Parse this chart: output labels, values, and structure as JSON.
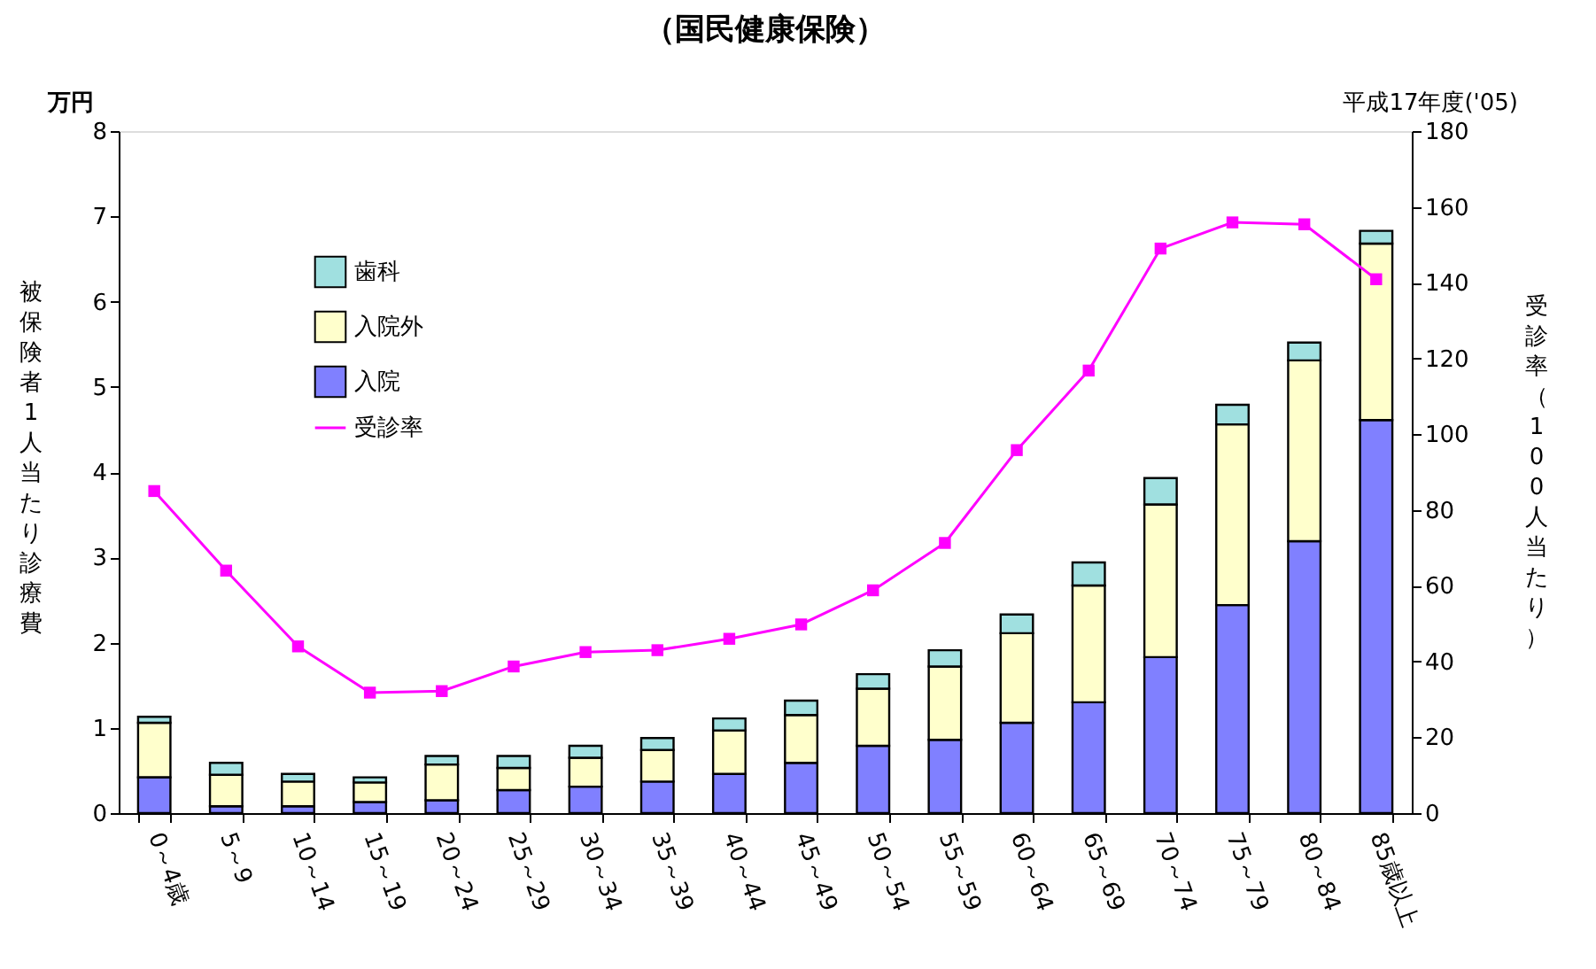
{
  "chart_data": {
    "type": "bar",
    "title": "（国民健康保険）",
    "ylabel": "被保険者1人当たり診療費",
    "y2label": "受診率（100人当たり）",
    "annotations": [
      "万円",
      "平成17年度('05)"
    ],
    "categories": [
      "0～4歳",
      "5～9",
      "10～14",
      "15～19",
      "20～24",
      "25～29",
      "30～34",
      "35～39",
      "40～44",
      "45～49",
      "50～54",
      "55～59",
      "60～64",
      "65～69",
      "70～74",
      "75～79",
      "80～84",
      "85歳以上"
    ],
    "stacked": true,
    "legend": "top left",
    "grid": false,
    "ylim": [
      0,
      8
    ],
    "yticks": [
      0,
      1,
      2,
      3,
      4,
      5,
      6,
      7,
      8
    ],
    "y2lim": [
      0,
      180
    ],
    "y2ticks": [
      0,
      20,
      40,
      60,
      80,
      100,
      120,
      140,
      160,
      180
    ],
    "series": [
      {
        "name": "入院",
        "color": "#8080ff",
        "values": [
          0.42,
          0.08,
          0.08,
          0.13,
          0.15,
          0.27,
          0.31,
          0.37,
          0.46,
          0.59,
          0.79,
          0.86,
          1.06,
          1.3,
          1.83,
          2.44,
          3.19,
          4.61
        ]
      },
      {
        "name": "入院外",
        "color": "#ffffcc",
        "values": [
          0.64,
          0.37,
          0.29,
          0.23,
          0.42,
          0.26,
          0.34,
          0.37,
          0.51,
          0.56,
          0.67,
          0.86,
          1.05,
          1.37,
          1.79,
          2.12,
          2.12,
          2.07
        ]
      },
      {
        "name": "歯科",
        "color": "#a0e0e0",
        "values": [
          0.07,
          0.14,
          0.09,
          0.06,
          0.1,
          0.14,
          0.14,
          0.14,
          0.14,
          0.17,
          0.17,
          0.19,
          0.22,
          0.27,
          0.31,
          0.23,
          0.21,
          0.15
        ]
      },
      {
        "name": "受診率",
        "color": "#ff00ff",
        "type": "line",
        "axis": "y2",
        "marker": "square",
        "values": [
          85.0,
          64.0,
          44.0,
          31.8,
          32.2,
          38.7,
          42.5,
          43.0,
          46.0,
          49.8,
          58.8,
          71.3,
          95.8,
          116.8,
          149.0,
          155.9,
          155.4,
          140.9
        ]
      }
    ]
  }
}
